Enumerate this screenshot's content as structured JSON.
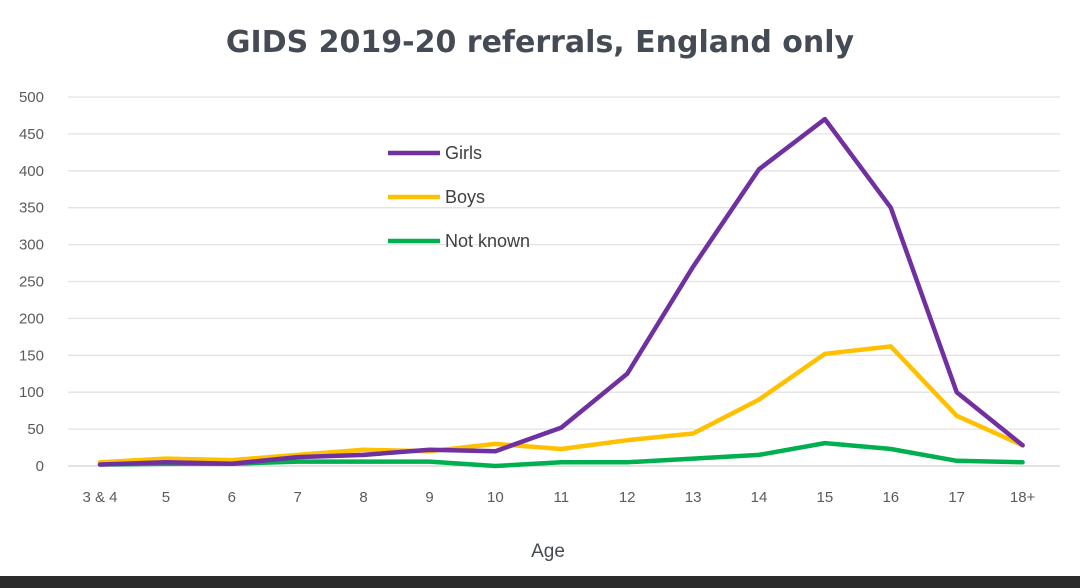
{
  "chart_data": {
    "type": "line",
    "title": "GIDS 2019-20 referrals, England only",
    "xlabel": "Age",
    "ylabel": "",
    "categories": [
      "3 & 4",
      "5",
      "6",
      "7",
      "8",
      "9",
      "10",
      "11",
      "12",
      "13",
      "14",
      "15",
      "16",
      "17",
      "18+"
    ],
    "ylim": [
      0,
      500
    ],
    "yticks": [
      0,
      50,
      100,
      150,
      200,
      250,
      300,
      350,
      400,
      450,
      500
    ],
    "grid": true,
    "legend_position": "upper-left-center",
    "series": [
      {
        "name": "Girls",
        "color": "#7030a0",
        "values": [
          2,
          5,
          3,
          12,
          15,
          22,
          20,
          52,
          125,
          270,
          402,
          470,
          350,
          100,
          28
        ]
      },
      {
        "name": "Boys",
        "color": "#ffc000",
        "values": [
          5,
          10,
          8,
          15,
          22,
          20,
          30,
          23,
          35,
          44,
          90,
          152,
          162,
          68,
          28
        ]
      },
      {
        "name": "Not known",
        "color": "#00b050",
        "values": [
          2,
          3,
          3,
          6,
          6,
          6,
          0,
          5,
          5,
          10,
          15,
          31,
          23,
          7,
          5
        ]
      }
    ]
  }
}
